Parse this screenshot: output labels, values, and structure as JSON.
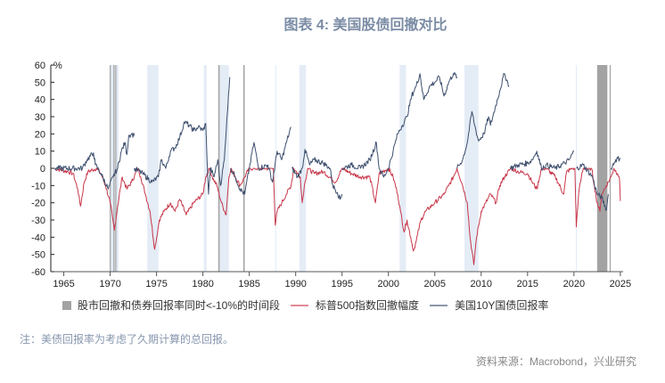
{
  "title": "图表 4:  美国股债回撤对比",
  "note": "注：美债回报率为考虑了久期计算的总回报。",
  "source": "资料来源：Macrobond，兴业研究",
  "chart_data": {
    "type": "line",
    "title": "图表 4:  美国股债回撤对比",
    "ylabel": "%",
    "xlim": [
      1963.6,
      2025.3
    ],
    "ylim": [
      -60,
      60
    ],
    "yticks": [
      60,
      50,
      40,
      30,
      20,
      10,
      0,
      -10,
      -20,
      -30,
      -40,
      -50,
      -60
    ],
    "xticks": [
      1965,
      1970,
      1975,
      1980,
      1985,
      1990,
      1995,
      2000,
      2005,
      2010,
      2015,
      2020,
      2025
    ],
    "grid": false,
    "legend_position": "bottom",
    "legend": [
      {
        "label": "股市回撤和债券回报率同时<-10%的时间段",
        "color": "#a3a3a3",
        "kind": "box"
      },
      {
        "label": "标普500指数回撤幅度",
        "color": "#c8374a",
        "kind": "line"
      },
      {
        "label": "美国10Y国债回报率",
        "color": "#3d4f6e",
        "kind": "line"
      }
    ],
    "gray_periods": [
      [
        1969.95,
        1970.05
      ],
      [
        1970.35,
        1970.45
      ],
      [
        1970.55,
        1970.65
      ],
      [
        1981.65,
        1981.8
      ],
      [
        1984.35,
        1984.5
      ],
      [
        2022.5,
        2023.6
      ],
      [
        2023.85,
        2023.95
      ]
    ],
    "shaded_periods": [
      [
        1970.0,
        1970.9
      ],
      [
        1974.0,
        1975.2
      ],
      [
        1980.1,
        1980.4
      ],
      [
        1981.8,
        1982.8
      ],
      [
        1987.8,
        1987.9
      ],
      [
        1990.4,
        1991.1
      ],
      [
        2001.2,
        2001.9
      ],
      [
        2008.2,
        2009.7
      ],
      [
        2020.2,
        2020.3
      ]
    ],
    "series": [
      {
        "name": "标普500指数回撤幅度",
        "color": "#c8374a",
        "segments": [
          [
            [
              1964,
              0
            ],
            [
              1965.5,
              -2
            ],
            [
              1966,
              -3
            ],
            [
              1966.5,
              -12
            ],
            [
              1966.8,
              -22
            ],
            [
              1967.2,
              -8
            ],
            [
              1967.6,
              -2
            ],
            [
              1968.5,
              0
            ],
            [
              1969,
              -3
            ],
            [
              1969.5,
              -10
            ],
            [
              1970,
              -20
            ],
            [
              1970.45,
              -36
            ],
            [
              1970.8,
              -22
            ],
            [
              1971.3,
              -5
            ],
            [
              1971.8,
              -12
            ],
            [
              1972.3,
              -8
            ],
            [
              1973,
              0
            ],
            [
              1973.3,
              -5
            ],
            [
              1973.8,
              -15
            ],
            [
              1974.3,
              -25
            ],
            [
              1974.8,
              -47
            ],
            [
              1975.3,
              -30
            ],
            [
              1975.8,
              -25
            ],
            [
              1976.5,
              -20
            ],
            [
              1977,
              -25
            ],
            [
              1977.5,
              -18
            ],
            [
              1978.2,
              -27
            ],
            [
              1979,
              -20
            ],
            [
              1980,
              -15
            ],
            [
              1980.3,
              -5
            ],
            [
              1980.7,
              0
            ],
            [
              1981,
              -5
            ],
            [
              1981.5,
              -10
            ],
            [
              1982,
              -20
            ],
            [
              1982.5,
              -27
            ],
            [
              1982.8,
              -5
            ],
            [
              1983,
              0
            ],
            [
              1984,
              -10
            ],
            [
              1984.5,
              -5
            ],
            [
              1985,
              0
            ],
            [
              1987,
              0
            ],
            [
              1987.6,
              0
            ],
            [
              1987.8,
              -33
            ],
            [
              1988,
              -25
            ],
            [
              1988.5,
              -20
            ],
            [
              1989,
              -15
            ],
            [
              1989.5,
              -10
            ],
            [
              1989.8,
              0
            ],
            [
              1990.5,
              -5
            ],
            [
              1990.7,
              -20
            ],
            [
              1991,
              -8
            ],
            [
              1991.3,
              0
            ],
            [
              1992,
              -3
            ],
            [
              1993,
              -2
            ],
            [
              1994.3,
              -8
            ],
            [
              1995,
              0
            ],
            [
              1996,
              -3
            ],
            [
              1997,
              -5
            ],
            [
              1998,
              -5
            ],
            [
              1998.6,
              -20
            ],
            [
              1999,
              -3
            ],
            [
              2000,
              0
            ],
            [
              2000.5,
              -5
            ],
            [
              2001,
              -15
            ],
            [
              2001.3,
              -25
            ],
            [
              2001.7,
              -37
            ],
            [
              2002,
              -30
            ],
            [
              2002.4,
              -40
            ],
            [
              2002.7,
              -48
            ],
            [
              2003,
              -42
            ],
            [
              2003.5,
              -30
            ],
            [
              2004,
              -25
            ],
            [
              2005,
              -20
            ],
            [
              2006,
              -15
            ],
            [
              2006.5,
              -10
            ],
            [
              2007,
              -5
            ],
            [
              2007.4,
              0
            ],
            [
              2008,
              -10
            ],
            [
              2008.5,
              -20
            ],
            [
              2008.8,
              -40
            ],
            [
              2009.2,
              -56
            ],
            [
              2009.5,
              -40
            ],
            [
              2010,
              -25
            ],
            [
              2010.5,
              -20
            ],
            [
              2011,
              -15
            ],
            [
              2011.6,
              -20
            ],
            [
              2012,
              -10
            ],
            [
              2012.5,
              -5
            ],
            [
              2013.2,
              0
            ],
            [
              2014,
              -2
            ],
            [
              2015,
              -3
            ],
            [
              2015.5,
              -8
            ],
            [
              2016,
              -12
            ],
            [
              2016.5,
              0
            ],
            [
              2017,
              0
            ],
            [
              2018,
              -5
            ],
            [
              2018.9,
              -15
            ],
            [
              2019.2,
              -2
            ],
            [
              2019.8,
              0
            ],
            [
              2020.1,
              0
            ],
            [
              2020.25,
              -34
            ],
            [
              2020.5,
              -15
            ],
            [
              2020.8,
              -5
            ],
            [
              2021,
              0
            ],
            [
              2021.9,
              0
            ],
            [
              2022.2,
              -10
            ],
            [
              2022.5,
              -20
            ],
            [
              2022.8,
              -25
            ],
            [
              2023,
              -15
            ],
            [
              2023.5,
              -10
            ],
            [
              2024,
              -5
            ],
            [
              2024.3,
              0
            ],
            [
              2024.7,
              -3
            ],
            [
              2024.9,
              -5
            ],
            [
              2025,
              -19
            ]
          ]
        ]
      },
      {
        "name": "美国10Y国债回报率",
        "color": "#3d4f6e",
        "segments": [
          [
            [
              1964,
              0
            ],
            [
              1967,
              0
            ],
            [
              1967.5,
              5
            ],
            [
              1968.2,
              9
            ],
            [
              1968.4,
              2
            ],
            [
              1969,
              -3
            ],
            [
              1969.8,
              -12
            ],
            [
              1970.3,
              -5
            ],
            [
              1970.8,
              0
            ],
            [
              1971.2,
              10
            ],
            [
              1971.6,
              15
            ],
            [
              1971.8,
              8
            ],
            [
              1972,
              19
            ],
            [
              1972.3,
              20
            ],
            [
              1972.6,
              19
            ]
          ],
          [
            [
              1972.6,
              0
            ],
            [
              1973.5,
              -3
            ],
            [
              1974.5,
              -8
            ],
            [
              1975.2,
              -5
            ],
            [
              1975.5,
              5
            ],
            [
              1976,
              0
            ],
            [
              1976.5,
              10
            ],
            [
              1977,
              12
            ],
            [
              1977.5,
              18
            ],
            [
              1978,
              27
            ],
            [
              1978.5,
              25
            ],
            [
              1979,
              22
            ],
            [
              1979.5,
              24
            ],
            [
              1980,
              22
            ],
            [
              1980.3,
              26
            ],
            [
              1980.6,
              -15
            ],
            [
              1980.8,
              0
            ],
            [
              1981.2,
              -5
            ],
            [
              1981.6,
              5
            ],
            [
              1981.9,
              -10
            ],
            [
              1982.3,
              5
            ],
            [
              1982.6,
              30
            ],
            [
              1982.9,
              53
            ]
          ],
          [
            [
              1983,
              0
            ],
            [
              1983.5,
              -5
            ],
            [
              1984,
              -12
            ],
            [
              1984.5,
              -15
            ],
            [
              1985,
              0
            ],
            [
              1985.5,
              15
            ],
            [
              1986,
              0
            ],
            [
              1987,
              2
            ],
            [
              1987.5,
              -8
            ],
            [
              1988,
              10
            ],
            [
              1988.5,
              5
            ],
            [
              1989,
              15
            ],
            [
              1989.5,
              24
            ]
          ],
          [
            [
              1989.6,
              0
            ],
            [
              1990.2,
              -5
            ],
            [
              1990.7,
              0
            ],
            [
              1991,
              11
            ],
            [
              1991.5,
              2
            ],
            [
              1992,
              5
            ],
            [
              1993,
              3
            ],
            [
              1993.7,
              0
            ],
            [
              1994,
              -10
            ],
            [
              1994.5,
              -14
            ],
            [
              1994.8,
              -18
            ],
            [
              1995,
              -15
            ]
          ],
          [
            [
              1995,
              0
            ],
            [
              1996,
              2
            ],
            [
              1997,
              0
            ],
            [
              1998,
              5
            ],
            [
              1998.7,
              15
            ],
            [
              1999,
              0
            ],
            [
              1999.5,
              -5
            ],
            [
              2000,
              0
            ],
            [
              2000.5,
              10
            ],
            [
              2001,
              20
            ],
            [
              2001.5,
              25
            ],
            [
              2002,
              30
            ],
            [
              2002.5,
              42
            ],
            [
              2003,
              48
            ],
            [
              2003.4,
              55
            ],
            [
              2003.8,
              40
            ],
            [
              2004.5,
              48
            ],
            [
              2005,
              50
            ],
            [
              2005.5,
              53
            ],
            [
              2006,
              42
            ],
            [
              2006.5,
              50
            ],
            [
              2007,
              55
            ],
            [
              2007.4,
              53
            ]
          ],
          [
            [
              2007.4,
              0
            ],
            [
              2008,
              5
            ],
            [
              2008.5,
              15
            ],
            [
              2009,
              33
            ],
            [
              2009.3,
              25
            ],
            [
              2009.7,
              16
            ],
            [
              2010.3,
              20
            ],
            [
              2010.8,
              30
            ],
            [
              2011,
              25
            ],
            [
              2011.5,
              35
            ],
            [
              2012,
              45
            ],
            [
              2012.5,
              55
            ],
            [
              2013,
              48
            ]
          ],
          [
            [
              2013.1,
              0
            ],
            [
              2014,
              2
            ],
            [
              2015,
              3
            ],
            [
              2015.5,
              5
            ],
            [
              2016,
              10
            ],
            [
              2016.5,
              0
            ],
            [
              2017,
              2
            ],
            [
              2018,
              0
            ],
            [
              2019,
              3
            ],
            [
              2019.5,
              5
            ],
            [
              2020,
              10
            ]
          ],
          [
            [
              2020.3,
              0
            ],
            [
              2021,
              2
            ],
            [
              2022,
              -5
            ],
            [
              2022.5,
              -15
            ],
            [
              2023,
              -17
            ],
            [
              2023.5,
              -24
            ],
            [
              2023.7,
              -15
            ]
          ],
          [
            [
              2024,
              0
            ],
            [
              2024.5,
              5
            ],
            [
              2025,
              6
            ]
          ]
        ]
      }
    ]
  }
}
